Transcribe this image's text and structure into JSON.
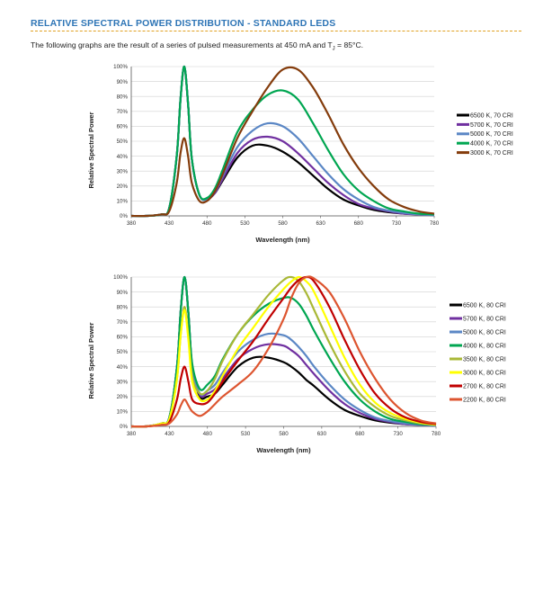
{
  "header": {
    "title": "RELATIVE SPECTRAL POWER DISTRIBUTION - STANDARD LEDS",
    "intro_before": "The following graphs are the result of a series of pulsed measurements at 450 mA and T",
    "intro_sub": "J",
    "intro_after": " = 85°C."
  },
  "chart_data": [
    {
      "type": "line",
      "title": "",
      "xlabel": "Wavelength (nm)",
      "ylabel": "Relative Spectral Power",
      "xlim": [
        380,
        780
      ],
      "ylim": [
        0,
        100
      ],
      "x_ticks": [
        "380",
        "430",
        "480",
        "530",
        "580",
        "630",
        "680",
        "730",
        "780"
      ],
      "y_ticks": [
        "0%",
        "10%",
        "20%",
        "30%",
        "40%",
        "50%",
        "60%",
        "70%",
        "80%",
        "90%",
        "100%"
      ],
      "grid": true,
      "legend_position": "right",
      "x": [
        380,
        400,
        420,
        430,
        440,
        445,
        450,
        455,
        460,
        470,
        480,
        490,
        500,
        520,
        540,
        560,
        580,
        600,
        620,
        640,
        660,
        680,
        700,
        720,
        740,
        760,
        780
      ],
      "series": [
        {
          "name": "6500 K, 70 CRI",
          "color": "#000000",
          "values": [
            0,
            0,
            1,
            5,
            40,
            78,
            100,
            75,
            38,
            14,
            11,
            15,
            23,
            39,
            47,
            47,
            43,
            36,
            27,
            18,
            11,
            7,
            4,
            2.5,
            1.5,
            1,
            0.5
          ]
        },
        {
          "name": "5700 K, 70 CRI",
          "color": "#7030a0",
          "values": [
            0,
            0,
            1,
            5,
            40,
            78,
            100,
            75,
            38,
            14,
            11,
            15,
            24,
            42,
            51,
            53,
            50,
            42,
            32,
            22,
            14,
            8,
            5,
            3,
            1.5,
            1,
            0.5
          ]
        },
        {
          "name": "5000 K, 70 CRI",
          "color": "#5b87c5",
          "values": [
            0,
            0,
            1,
            5,
            40,
            78,
            100,
            75,
            38,
            14,
            11,
            16,
            26,
            46,
            57,
            62,
            60,
            52,
            40,
            28,
            18,
            11,
            6,
            3.5,
            2,
            1,
            0.5
          ]
        },
        {
          "name": "4000 K, 70 CRI",
          "color": "#00a651",
          "values": [
            0,
            0,
            1,
            5,
            40,
            78,
            100,
            75,
            38,
            14,
            12,
            18,
            30,
            56,
            71,
            81,
            84,
            78,
            62,
            44,
            28,
            17,
            10,
            5,
            3,
            1.5,
            1
          ]
        },
        {
          "name": "3000 K, 70 CRI",
          "color": "#843c0c",
          "values": [
            0,
            0,
            1,
            3,
            22,
            42,
            52,
            40,
            22,
            10,
            10,
            16,
            27,
            52,
            70,
            86,
            98,
            98,
            86,
            68,
            48,
            32,
            20,
            11,
            6,
            3,
            1.5
          ]
        }
      ]
    },
    {
      "type": "line",
      "title": "",
      "xlabel": "Wavelength (nm)",
      "ylabel": "Relative Spectral Power",
      "xlim": [
        380,
        780
      ],
      "ylim": [
        0,
        100
      ],
      "x_ticks": [
        "380",
        "430",
        "480",
        "530",
        "580",
        "630",
        "680",
        "730",
        "780"
      ],
      "y_ticks": [
        "0%",
        "10%",
        "20%",
        "30%",
        "40%",
        "50%",
        "60%",
        "70%",
        "80%",
        "90%",
        "100%"
      ],
      "grid": true,
      "legend_position": "right",
      "x": [
        380,
        400,
        420,
        430,
        440,
        445,
        450,
        455,
        460,
        470,
        480,
        490,
        500,
        520,
        540,
        560,
        580,
        590,
        600,
        610,
        620,
        640,
        660,
        680,
        700,
        720,
        740,
        760,
        780
      ],
      "series": [
        {
          "name": "6500 K, 80 CRI",
          "color": "#000000",
          "values": [
            0,
            0,
            2,
            6,
            40,
            78,
            100,
            76,
            40,
            20,
            20,
            22,
            28,
            40,
            46,
            46,
            43,
            40,
            36,
            31,
            27,
            18,
            11,
            7,
            4,
            2.5,
            1.5,
            1,
            0.5
          ]
        },
        {
          "name": "5700 K, 80 CRI",
          "color": "#7030a0",
          "values": [
            0,
            0,
            2,
            6,
            40,
            78,
            100,
            76,
            40,
            21,
            22,
            25,
            32,
            45,
            52,
            55,
            54,
            51,
            47,
            41,
            35,
            24,
            15,
            9,
            5,
            3,
            1.5,
            1,
            0.5
          ]
        },
        {
          "name": "5000 K, 80 CRI",
          "color": "#5b87c5",
          "values": [
            0,
            0,
            2,
            6,
            40,
            78,
            100,
            76,
            40,
            22,
            24,
            28,
            36,
            50,
            58,
            62,
            61,
            58,
            53,
            47,
            40,
            28,
            18,
            11,
            6,
            3.5,
            2,
            1,
            0.5
          ]
        },
        {
          "name": "4000 K, 80 CRI",
          "color": "#00a651",
          "values": [
            0,
            0,
            2,
            6,
            40,
            78,
            100,
            76,
            42,
            25,
            28,
            34,
            45,
            62,
            74,
            82,
            86,
            86,
            82,
            74,
            64,
            46,
            30,
            18,
            10,
            5,
            3,
            1.5,
            1
          ]
        },
        {
          "name": "3500 K, 80 CRI",
          "color": "#a9b837",
          "values": [
            0,
            0,
            2,
            5,
            32,
            62,
            80,
            60,
            33,
            22,
            24,
            32,
            44,
            62,
            75,
            88,
            98,
            100,
            97,
            89,
            78,
            56,
            37,
            22,
            13,
            7,
            4,
            2,
            1
          ]
        },
        {
          "name": "3000 K, 80 CRI",
          "color": "#ffff00",
          "values": [
            0,
            0,
            2,
            5,
            32,
            62,
            78,
            58,
            30,
            18,
            18,
            24,
            34,
            52,
            66,
            80,
            92,
            97,
            100,
            97,
            90,
            68,
            46,
            28,
            16,
            9,
            5,
            2.5,
            1
          ]
        },
        {
          "name": "2700 K, 80 CRI",
          "color": "#c00000",
          "values": [
            0,
            0,
            1,
            3,
            18,
            32,
            40,
            30,
            18,
            15,
            16,
            22,
            30,
            44,
            57,
            72,
            86,
            93,
            98,
            100,
            97,
            80,
            58,
            38,
            22,
            12,
            6,
            3,
            1.5
          ]
        },
        {
          "name": "2200 K, 80 CRI",
          "color": "#dd5530",
          "values": [
            0,
            0,
            1,
            2,
            8,
            14,
            18,
            14,
            10,
            7,
            10,
            15,
            20,
            28,
            37,
            52,
            72,
            86,
            96,
            100,
            99,
            90,
            72,
            50,
            32,
            18,
            9,
            4,
            2
          ]
        }
      ]
    }
  ]
}
